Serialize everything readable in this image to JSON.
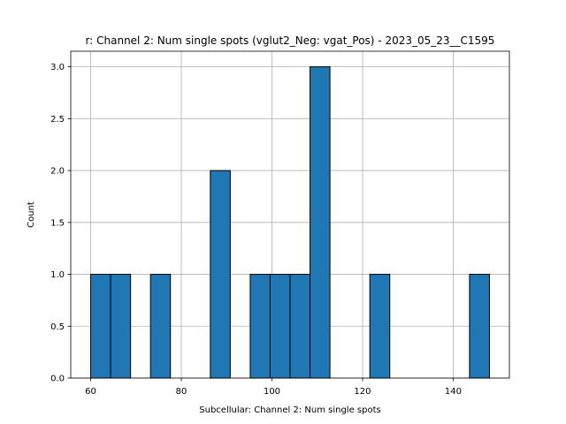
{
  "chart_data": {
    "type": "bar",
    "title": "r: Channel 2: Num single spots (vglut2_Neg: vgat_Pos) - 2023_05_23__C1595",
    "xlabel": "Subcellular: Channel 2: Num single spots",
    "ylabel": "Count",
    "xlim": [
      55.6,
      152.4
    ],
    "ylim": [
      0,
      3.15
    ],
    "xticks": [
      "60",
      "80",
      "100",
      "120",
      "140"
    ],
    "yticks": [
      "0.0",
      "0.5",
      "1.0",
      "1.5",
      "2.0",
      "2.5",
      "3.0"
    ],
    "grid": true,
    "bins": [
      {
        "start": 60.0,
        "end": 64.4,
        "count": 1
      },
      {
        "start": 64.4,
        "end": 68.8,
        "count": 1
      },
      {
        "start": 68.8,
        "end": 73.2,
        "count": 0
      },
      {
        "start": 73.2,
        "end": 77.6,
        "count": 1
      },
      {
        "start": 77.6,
        "end": 82.0,
        "count": 0
      },
      {
        "start": 82.0,
        "end": 86.4,
        "count": 0
      },
      {
        "start": 86.4,
        "end": 90.8,
        "count": 2
      },
      {
        "start": 90.8,
        "end": 95.2,
        "count": 0
      },
      {
        "start": 95.2,
        "end": 99.6,
        "count": 1
      },
      {
        "start": 99.6,
        "end": 104.0,
        "count": 1
      },
      {
        "start": 104.0,
        "end": 108.4,
        "count": 1
      },
      {
        "start": 108.4,
        "end": 112.8,
        "count": 3
      },
      {
        "start": 112.8,
        "end": 117.2,
        "count": 0
      },
      {
        "start": 117.2,
        "end": 121.6,
        "count": 0
      },
      {
        "start": 121.6,
        "end": 126.0,
        "count": 1
      },
      {
        "start": 126.0,
        "end": 130.4,
        "count": 0
      },
      {
        "start": 130.4,
        "end": 134.8,
        "count": 0
      },
      {
        "start": 134.8,
        "end": 139.2,
        "count": 0
      },
      {
        "start": 139.2,
        "end": 143.6,
        "count": 0
      },
      {
        "start": 143.6,
        "end": 148.0,
        "count": 1
      }
    ],
    "colors": {
      "bar": "#1f77b4",
      "edge": "#000000",
      "grid": "#b0b0b0"
    }
  }
}
